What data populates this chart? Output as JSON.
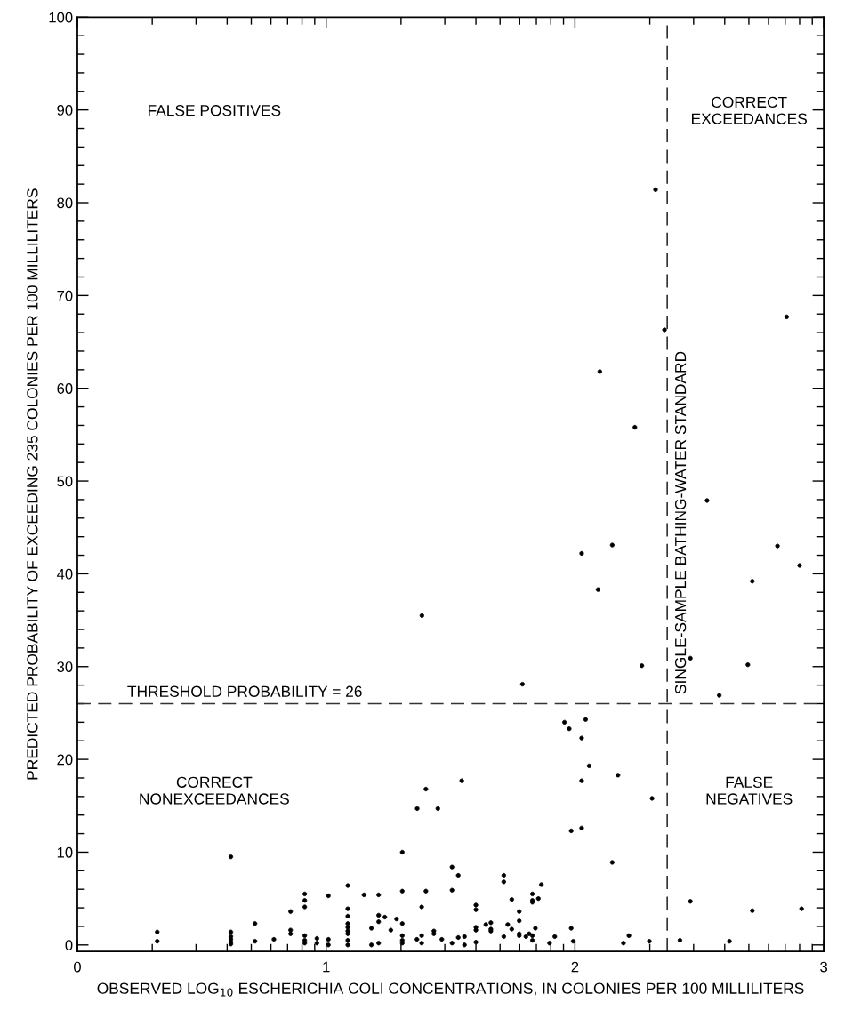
{
  "chart_data": {
    "type": "scatter",
    "xlabel": "OBSERVED LOG$_{10}$ ESCHERICHIA COLI CONCENTRATIONS, IN COLONIES PER 100 MILLILITERS",
    "ylabel": "PREDICTED PROBABILITY OF EXCEEDING 235 COLONIES PER 100 MILLILITERS",
    "annotations": [
      "FALSE POSITIVES",
      "CORRECT\nEXCEEDANCES",
      "CORRECT\nNONEXCEEDANCES",
      "FALSE\nNEGATIVES"
    ],
    "xlim": [
      0,
      3
    ],
    "ylim": [
      -0.7,
      100
    ],
    "xticks": [
      0,
      {
        "value": 0.301,
        "label": null
      },
      {
        "value": 0.477,
        "label": null
      },
      {
        "value": 0.602,
        "label": null
      },
      {
        "value": 0.699,
        "label": null
      },
      {
        "value": 0.778,
        "label": null
      },
      {
        "value": 0.845,
        "label": null
      },
      {
        "value": 0.903,
        "label": null
      },
      {
        "value": 0.954,
        "label": null
      },
      1,
      {
        "value": 1.301,
        "label": null
      },
      {
        "value": 1.477,
        "label": null
      },
      {
        "value": 1.602,
        "label": null
      },
      {
        "value": 1.699,
        "label": null
      },
      {
        "value": 1.778,
        "label": null
      },
      {
        "value": 1.845,
        "label": null
      },
      {
        "value": 1.903,
        "label": null
      },
      {
        "value": 1.954,
        "label": null
      },
      2,
      {
        "value": 2.301,
        "label": null
      },
      {
        "value": 2.477,
        "label": null
      },
      {
        "value": 2.602,
        "label": null
      },
      {
        "value": 2.699,
        "label": null
      },
      {
        "value": 2.778,
        "label": null
      },
      {
        "value": 2.845,
        "label": null
      },
      {
        "value": 2.903,
        "label": null
      },
      {
        "value": 2.954,
        "label": null
      },
      3
    ],
    "yticks": [
      0,
      {
        "value": 2,
        "label": null
      },
      {
        "value": 4,
        "label": null
      },
      {
        "value": 6,
        "label": null
      },
      {
        "value": 8,
        "label": null
      },
      10,
      {
        "value": 12,
        "label": null
      },
      {
        "value": 14,
        "label": null
      },
      {
        "value": 16,
        "label": null
      },
      {
        "value": 18,
        "label": null
      },
      20,
      {
        "value": 22,
        "label": null
      },
      {
        "value": 24,
        "label": null
      },
      {
        "value": 26,
        "label": null
      },
      {
        "value": 28,
        "label": null
      },
      30,
      {
        "value": 32,
        "label": null
      },
      {
        "value": 34,
        "label": null
      },
      {
        "value": 36,
        "label": null
      },
      {
        "value": 38,
        "label": null
      },
      40,
      {
        "value": 42,
        "label": null
      },
      {
        "value": 44,
        "label": null
      },
      {
        "value": 46,
        "label": null
      },
      {
        "value": 48,
        "label": null
      },
      50,
      {
        "value": 52,
        "label": null
      },
      {
        "value": 54,
        "label": null
      },
      {
        "value": 56,
        "label": null
      },
      {
        "value": 58,
        "label": null
      },
      60,
      {
        "value": 62,
        "label": null
      },
      {
        "value": 64,
        "label": null
      },
      {
        "value": 66,
        "label": null
      },
      {
        "value": 68,
        "label": null
      },
      70,
      {
        "value": 72,
        "label": null
      },
      {
        "value": 74,
        "label": null
      },
      {
        "value": 76,
        "label": null
      },
      {
        "value": 78,
        "label": null
      },
      80,
      {
        "value": 82,
        "label": null
      },
      {
        "value": 84,
        "label": null
      },
      {
        "value": 86,
        "label": null
      },
      {
        "value": 88,
        "label": null
      },
      90,
      {
        "value": 92,
        "label": null
      },
      {
        "value": 94,
        "label": null
      },
      {
        "value": 96,
        "label": null
      },
      {
        "value": 98,
        "label": null
      },
      100
    ],
    "grid": false,
    "marker": "circle",
    "ref_lines": [
      {
        "axis": "y",
        "value": 26,
        "label": "THRESHOLD PROBABILITY = 26",
        "color": "#333333",
        "line_style": "dashed"
      },
      {
        "axis": "x",
        "value": 2.371,
        "label": "SINGLE-SAMPLE BATHING-WATER STANDARD",
        "color": "#333333",
        "line_style": "dashed"
      }
    ],
    "series": [
      {
        "color": "#000000",
        "x": [
          0.321,
          0.321,
          0.617,
          0.617,
          0.617,
          0.617,
          0.617,
          0.617,
          0.714,
          0.714,
          0.79,
          0.857,
          0.857,
          0.857,
          0.914,
          0.914,
          0.914,
          0.914,
          0.914,
          0.914,
          0.963,
          0.963,
          1.009,
          1.009,
          1.009,
          1.087,
          1.087,
          1.087,
          1.087,
          1.087,
          1.087,
          1.087,
          1.087,
          1.087,
          1.152,
          1.182,
          1.182,
          1.211,
          1.211,
          1.211,
          1.211,
          1.236,
          1.26,
          1.283,
          1.306,
          1.306,
          1.306,
          1.306,
          1.306,
          1.306,
          1.365,
          1.384,
          1.384,
          1.384,
          1.401,
          1.433,
          1.433,
          1.465,
          1.506,
          1.531,
          1.506,
          1.506,
          1.531,
          1.556,
          1.556,
          1.602,
          1.602,
          1.602,
          1.602,
          1.602,
          1.642,
          1.662,
          1.662,
          1.662,
          1.714,
          1.714,
          1.714,
          1.73,
          1.746,
          1.746,
          1.776,
          1.776,
          1.776,
          1.776,
          1.803,
          1.816,
          1.829,
          1.829,
          1.829,
          1.829,
          1.829,
          1.841,
          1.853,
          1.865,
          1.898,
          1.919,
          1.985,
          1.993,
          2.15,
          2.195,
          2.217,
          2.299,
          2.422,
          2.464,
          2.621,
          2.713,
          2.911,
          1.789,
          1.958,
          1.977,
          2.043,
          2.027,
          2.057,
          2.027,
          2.173,
          1.545,
          1.401,
          1.366,
          1.449,
          1.985,
          2.027,
          2.31,
          2.324,
          2.36,
          2.1,
          2.851,
          2.241,
          2.531,
          2.15,
          2.027,
          2.814,
          2.903,
          2.713,
          2.093,
          2.464,
          2.269,
          2.695,
          1.385,
          2.58
        ],
        "values": [
          1.4,
          0.4,
          9.5,
          1.4,
          0.9,
          0.6,
          0.3,
          0.1,
          2.3,
          0.4,
          0.6,
          3.6,
          1.6,
          1.2,
          5.5,
          4.8,
          4.1,
          1.0,
          0.5,
          0.2,
          0.7,
          0.2,
          5.3,
          0.6,
          0.0,
          6.4,
          3.9,
          3.1,
          2.3,
          1.9,
          1.5,
          1.2,
          0.5,
          0.0,
          5.4,
          1.8,
          0.0,
          5.4,
          3.2,
          2.5,
          0.2,
          3.0,
          1.6,
          2.8,
          10.0,
          5.8,
          2.3,
          1.0,
          0.5,
          0.2,
          0.6,
          4.1,
          1.0,
          0.2,
          5.8,
          1.5,
          1.2,
          0.6,
          8.4,
          7.5,
          5.9,
          0.2,
          0.8,
          0.9,
          0.0,
          4.3,
          3.8,
          1.9,
          1.6,
          0.3,
          2.2,
          2.4,
          1.7,
          1.5,
          7.5,
          6.8,
          0.9,
          2.2,
          4.9,
          1.7,
          3.6,
          2.6,
          1.2,
          1.0,
          0.9,
          1.2,
          5.5,
          4.8,
          4.6,
          1.0,
          0.5,
          1.8,
          5.0,
          6.5,
          0.2,
          0.9,
          1.8,
          0.4,
          8.9,
          0.2,
          1.0,
          0.4,
          0.5,
          4.7,
          0.4,
          3.7,
          3.9,
          28.1,
          24.0,
          23.3,
          24.3,
          22.3,
          19.3,
          17.7,
          18.3,
          17.7,
          16.8,
          14.7,
          14.7,
          12.3,
          12.6,
          15.8,
          81.4,
          66.3,
          61.8,
          67.7,
          55.8,
          47.9,
          43.1,
          42.2,
          43.0,
          40.9,
          39.2,
          38.3,
          30.9,
          30.1,
          30.2,
          35.5,
          26.9
        ]
      }
    ]
  }
}
